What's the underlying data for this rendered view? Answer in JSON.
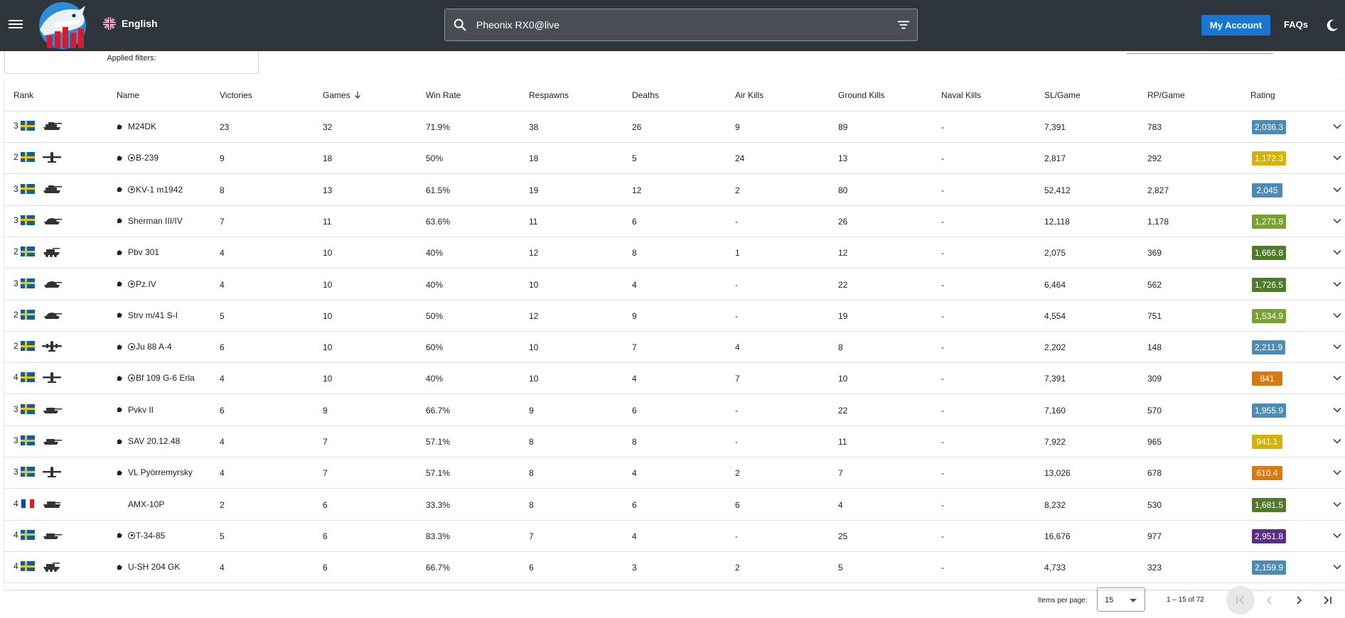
{
  "header": {
    "language": "English",
    "search_value": "Pheonix RX0@live",
    "account_label": "My Account",
    "faqs_label": "FAQs"
  },
  "filters": {
    "applied_label": "Applied filters:"
  },
  "table": {
    "columns": [
      "Rank",
      "Name",
      "Victories",
      "Games",
      "Win Rate",
      "Respawns",
      "Deaths",
      "Air Kills",
      "Ground Kills",
      "Naval Kills",
      "SL/Game",
      "RP/Game",
      "Rating"
    ],
    "sort_column": "Games",
    "sort_direction": "descending",
    "rows": [
      {
        "rank": "3",
        "nation": "sweden",
        "vehicle_icon": "heavy-tank-icon",
        "premium": true,
        "event": false,
        "name": "M24DK",
        "victories": "23",
        "games": "32",
        "win_rate": "71.9%",
        "respawns": "38",
        "deaths": "26",
        "air_kills": "9",
        "ground_kills": "89",
        "naval_kills": "-",
        "sl_game": "7,391",
        "rp_game": "783",
        "rating": "2,036.3",
        "rating_color": "#4c8cb3"
      },
      {
        "rank": "2",
        "nation": "sweden",
        "vehicle_icon": "fighter-plane-icon",
        "premium": true,
        "event": true,
        "name": "B-239",
        "victories": "9",
        "games": "18",
        "win_rate": "50%",
        "respawns": "18",
        "deaths": "5",
        "air_kills": "24",
        "ground_kills": "13",
        "naval_kills": "-",
        "sl_game": "2,817",
        "rp_game": "292",
        "rating": "1,172.3",
        "rating_color": "#d6b300"
      },
      {
        "rank": "3",
        "nation": "sweden",
        "vehicle_icon": "heavy-tank-icon",
        "premium": true,
        "event": true,
        "name": "KV-1 m1942",
        "victories": "8",
        "games": "13",
        "win_rate": "61.5%",
        "respawns": "19",
        "deaths": "12",
        "air_kills": "2",
        "ground_kills": "80",
        "naval_kills": "-",
        "sl_game": "52,412",
        "rp_game": "2,827",
        "rating": "2,045",
        "rating_color": "#4c8cb3"
      },
      {
        "rank": "3",
        "nation": "sweden",
        "vehicle_icon": "medium-tank-icon",
        "premium": true,
        "event": false,
        "name": "Sherman III/IV",
        "victories": "7",
        "games": "11",
        "win_rate": "63.6%",
        "respawns": "11",
        "deaths": "6",
        "air_kills": "-",
        "ground_kills": "26",
        "naval_kills": "-",
        "sl_game": "12,118",
        "rp_game": "1,178",
        "rating": "1,273.8",
        "rating_color": "#78a22f"
      },
      {
        "rank": "2",
        "nation": "sweden",
        "vehicle_icon": "spaa-icon",
        "premium": true,
        "event": false,
        "name": "Pbv 301",
        "victories": "4",
        "games": "10",
        "win_rate": "40%",
        "respawns": "12",
        "deaths": "8",
        "air_kills": "1",
        "ground_kills": "12",
        "naval_kills": "-",
        "sl_game": "2,075",
        "rp_game": "369",
        "rating": "1,666.8",
        "rating_color": "#4f7a28"
      },
      {
        "rank": "3",
        "nation": "sweden",
        "vehicle_icon": "medium-tank-icon",
        "premium": true,
        "event": true,
        "name": "Pz.IV",
        "victories": "4",
        "games": "10",
        "win_rate": "40%",
        "respawns": "10",
        "deaths": "4",
        "air_kills": "-",
        "ground_kills": "22",
        "naval_kills": "-",
        "sl_game": "6,464",
        "rp_game": "562",
        "rating": "1,726.5",
        "rating_color": "#4f7a28"
      },
      {
        "rank": "2",
        "nation": "sweden",
        "vehicle_icon": "medium-tank-icon",
        "premium": true,
        "event": false,
        "name": "Strv m/41 S-I",
        "victories": "5",
        "games": "10",
        "win_rate": "50%",
        "respawns": "12",
        "deaths": "9",
        "air_kills": "-",
        "ground_kills": "19",
        "naval_kills": "-",
        "sl_game": "4,554",
        "rp_game": "751",
        "rating": "1,534.9",
        "rating_color": "#78a22f"
      },
      {
        "rank": "2",
        "nation": "sweden",
        "vehicle_icon": "bomber-plane-icon",
        "premium": true,
        "event": true,
        "name": "Ju 88 A-4",
        "victories": "6",
        "games": "10",
        "win_rate": "60%",
        "respawns": "10",
        "deaths": "7",
        "air_kills": "4",
        "ground_kills": "8",
        "naval_kills": "-",
        "sl_game": "2,202",
        "rp_game": "148",
        "rating": "2,211.9",
        "rating_color": "#4c8cb3"
      },
      {
        "rank": "4",
        "nation": "sweden",
        "vehicle_icon": "fighter-plane-icon",
        "premium": true,
        "event": true,
        "name": "Bf 109 G-6 Erla",
        "victories": "4",
        "games": "10",
        "win_rate": "40%",
        "respawns": "10",
        "deaths": "4",
        "air_kills": "7",
        "ground_kills": "10",
        "naval_kills": "-",
        "sl_game": "7,391",
        "rp_game": "309",
        "rating": "841",
        "rating_color": "#d87a0e"
      },
      {
        "rank": "3",
        "nation": "sweden",
        "vehicle_icon": "tank-destroyer-icon",
        "premium": true,
        "event": false,
        "name": "Pvkv II",
        "victories": "6",
        "games": "9",
        "win_rate": "66.7%",
        "respawns": "9",
        "deaths": "6",
        "air_kills": "-",
        "ground_kills": "22",
        "naval_kills": "-",
        "sl_game": "7,160",
        "rp_game": "570",
        "rating": "1,955.9",
        "rating_color": "#4c8cb3"
      },
      {
        "rank": "3",
        "nation": "sweden",
        "vehicle_icon": "tank-destroyer-icon",
        "premium": true,
        "event": false,
        "name": "SAV 20.12.48",
        "victories": "4",
        "games": "7",
        "win_rate": "57.1%",
        "respawns": "8",
        "deaths": "8",
        "air_kills": "-",
        "ground_kills": "11",
        "naval_kills": "-",
        "sl_game": "7,922",
        "rp_game": "965",
        "rating": "941.1",
        "rating_color": "#d6b300"
      },
      {
        "rank": "3",
        "nation": "sweden",
        "vehicle_icon": "fighter-plane-icon",
        "premium": true,
        "event": false,
        "name": "VL Pyörremyrsky",
        "victories": "4",
        "games": "7",
        "win_rate": "57.1%",
        "respawns": "8",
        "deaths": "4",
        "air_kills": "2",
        "ground_kills": "7",
        "naval_kills": "-",
        "sl_game": "13,026",
        "rp_game": "678",
        "rating": "610.4",
        "rating_color": "#d87a0e"
      },
      {
        "rank": "4",
        "nation": "france",
        "vehicle_icon": "light-tank-icon",
        "premium": false,
        "event": false,
        "name": "AMX-10P",
        "victories": "2",
        "games": "6",
        "win_rate": "33.3%",
        "respawns": "8",
        "deaths": "6",
        "air_kills": "6",
        "ground_kills": "4",
        "naval_kills": "-",
        "sl_game": "8,232",
        "rp_game": "530",
        "rating": "1,681.5",
        "rating_color": "#4f7a28"
      },
      {
        "rank": "4",
        "nation": "sweden",
        "vehicle_icon": "tank-destroyer-icon",
        "premium": true,
        "event": true,
        "name": "T-34-85",
        "victories": "5",
        "games": "6",
        "win_rate": "83.3%",
        "respawns": "7",
        "deaths": "4",
        "air_kills": "-",
        "ground_kills": "25",
        "naval_kills": "-",
        "sl_game": "16,676",
        "rp_game": "977",
        "rating": "2,951.8",
        "rating_color": "#5b2d84"
      },
      {
        "rank": "4",
        "nation": "sweden",
        "vehicle_icon": "spaa-icon",
        "premium": true,
        "event": false,
        "name": "U-SH 204 GK",
        "victories": "4",
        "games": "6",
        "win_rate": "66.7%",
        "respawns": "6",
        "deaths": "3",
        "air_kills": "2",
        "ground_kills": "5",
        "naval_kills": "-",
        "sl_game": "4,733",
        "rp_game": "323",
        "rating": "2,159.9",
        "rating_color": "#4c8cb3"
      }
    ]
  },
  "paginator": {
    "items_per_page_label": "Items per page:",
    "items_per_page": "15",
    "range": "1 – 15 of 72"
  }
}
